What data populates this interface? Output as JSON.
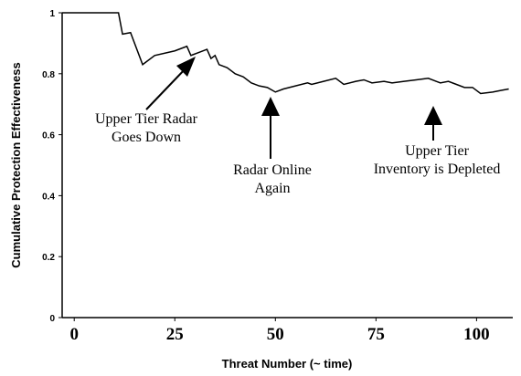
{
  "chart_data": {
    "type": "line",
    "x_label": "Threat Number (~ time)",
    "y_label": "Cumulative Protection Effectiveness",
    "x": [
      -3,
      11,
      12,
      14,
      17,
      20,
      25,
      28,
      29,
      31,
      33,
      34,
      35,
      36,
      38,
      40,
      42,
      44,
      46,
      48,
      50,
      52,
      55,
      58,
      59,
      62,
      65,
      67,
      70,
      72,
      74,
      77,
      79,
      82,
      85,
      88,
      90,
      91,
      93,
      95,
      97,
      99,
      101,
      104,
      106,
      108
    ],
    "series": [
      {
        "name": "Cumulative Protection Effectiveness",
        "color": "#000000",
        "values": [
          1,
          1,
          0.93,
          0.935,
          0.83,
          0.86,
          0.875,
          0.89,
          0.86,
          0.87,
          0.88,
          0.85,
          0.86,
          0.83,
          0.82,
          0.8,
          0.79,
          0.77,
          0.76,
          0.755,
          0.74,
          0.75,
          0.76,
          0.77,
          0.765,
          0.775,
          0.785,
          0.765,
          0.775,
          0.78,
          0.77,
          0.775,
          0.77,
          0.775,
          0.78,
          0.785,
          0.775,
          0.77,
          0.775,
          0.765,
          0.755,
          0.755,
          0.735,
          0.74,
          0.745,
          0.75
        ]
      }
    ],
    "xlim": [
      -3,
      109
    ],
    "ylim": [
      0,
      1
    ],
    "xticks": [
      0,
      25,
      50,
      75,
      100
    ],
    "yticks": [
      0,
      0.2,
      0.4,
      0.6,
      0.8,
      1
    ],
    "grid": false,
    "annotations": [
      [
        "Upper Tier Radar",
        "Goes Down"
      ],
      [
        "Radar Online",
        "Again"
      ],
      [
        "Upper Tier",
        "Inventory is Depleted"
      ]
    ]
  }
}
